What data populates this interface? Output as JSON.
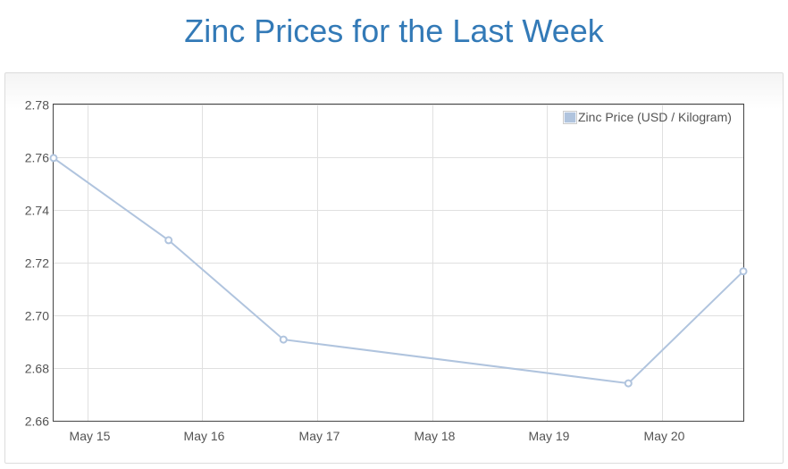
{
  "title": "Zinc Prices for the Last Week",
  "chart_data": {
    "type": "line",
    "title": "",
    "xlabel": "",
    "ylabel": "",
    "x_ticks": [
      "May 15",
      "May 16",
      "May 17",
      "May 18",
      "May 19",
      "May 20"
    ],
    "y_ticks": [
      "2.66",
      "2.68",
      "2.70",
      "2.72",
      "2.74",
      "2.76",
      "2.78"
    ],
    "ylim": [
      2.66,
      2.78
    ],
    "xlim": [
      "2023-05-14T17:00",
      "2023-05-20T17:00"
    ],
    "series": [
      {
        "name": "Zinc Price (USD / Kilogram)",
        "color": "#b0c4de",
        "points": [
          {
            "x": "2023-05-14T17:00",
            "y": 2.7597
          },
          {
            "x": "2023-05-15T17:00",
            "y": 2.7285
          },
          {
            "x": "2023-05-16T17:00",
            "y": 2.6908
          },
          {
            "x": "2023-05-19T17:00",
            "y": 2.6742
          },
          {
            "x": "2023-05-20T17:00",
            "y": 2.7167
          }
        ]
      }
    ],
    "grid": true,
    "legend_position": "top-right"
  }
}
